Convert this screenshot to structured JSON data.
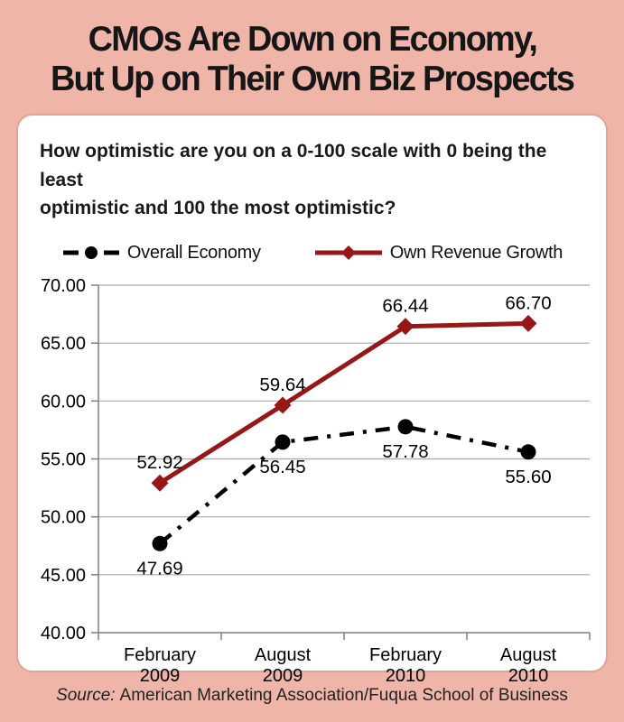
{
  "header": {
    "title_line1": "CMOs Are Down on Economy,",
    "title_line2": "But Up on Their Own Biz Prospects"
  },
  "panel": {
    "question_line1": "How optimistic are you on a 0-100 scale with 0 being the least",
    "question_line2": "optimistic and 100 the most optimistic?"
  },
  "footer": {
    "source_label": "Source:",
    "source_text": "American Marketing Association/Fuqua School of Business"
  },
  "colors": {
    "background": "#eeb5a8",
    "panel_border": "#e2a392",
    "economy_series": "#000000",
    "revenue_series": "#971616",
    "gridline": "#a8a8a8",
    "axis": "#7f7f7f",
    "label_text": "#000000"
  },
  "chart_data": {
    "type": "line",
    "categories": [
      "February 2009",
      "August 2009",
      "February 2010",
      "August 2010"
    ],
    "series": [
      {
        "name": "Overall Economy",
        "values": [
          47.69,
          56.45,
          57.78,
          55.6
        ],
        "color": "#000000",
        "marker": "circle",
        "line_style": "dash-dot",
        "data_label_position": "below"
      },
      {
        "name": "Own Revenue Growth",
        "values": [
          52.92,
          59.64,
          66.44,
          66.7
        ],
        "color": "#971616",
        "marker": "diamond",
        "line_style": "solid",
        "data_label_position": "above"
      }
    ],
    "ylim": [
      40,
      70
    ],
    "ytick_step": 5,
    "ytick_decimals": 2,
    "grid": true,
    "legend_position": "top",
    "data_labels": true
  }
}
